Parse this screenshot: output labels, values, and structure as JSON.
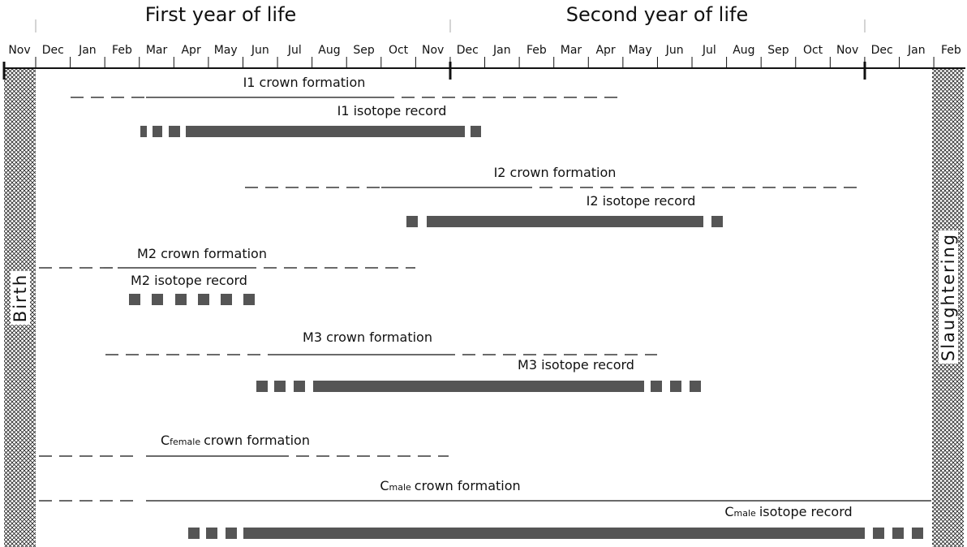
{
  "header": {
    "years": [
      "First year of life",
      "Second year of life"
    ]
  },
  "months": [
    "Nov",
    "Dec",
    "Jan",
    "Feb",
    "Mar",
    "Apr",
    "May",
    "Jun",
    "Jul",
    "Aug",
    "Sep",
    "Oct",
    "Nov",
    "Dec",
    "Jan",
    "Feb",
    "Mar",
    "Apr",
    "May",
    "Jun",
    "Jul",
    "Aug",
    "Sep",
    "Oct",
    "Nov",
    "Dec",
    "Jan",
    "Feb"
  ],
  "markers": {
    "start": "Birth",
    "end": "Slaughtering"
  },
  "rows": [
    {
      "label": "I1 crown formation"
    },
    {
      "label": "I1 isotope record"
    },
    {
      "label": "I2 crown formation"
    },
    {
      "label": "I2 isotope record"
    },
    {
      "label": "M2 crown formation"
    },
    {
      "label": "M2 isotope record"
    },
    {
      "label": "M3 crown formation"
    },
    {
      "label": "M3 isotope record"
    },
    {
      "label": {
        "main": "C",
        "sub": "female",
        "rest": "crown formation"
      }
    },
    {
      "label": {
        "main": "C",
        "sub": "male",
        "rest": "crown formation"
      }
    },
    {
      "label": {
        "main": "C",
        "sub": "male",
        "rest": "isotope record"
      }
    }
  ]
}
